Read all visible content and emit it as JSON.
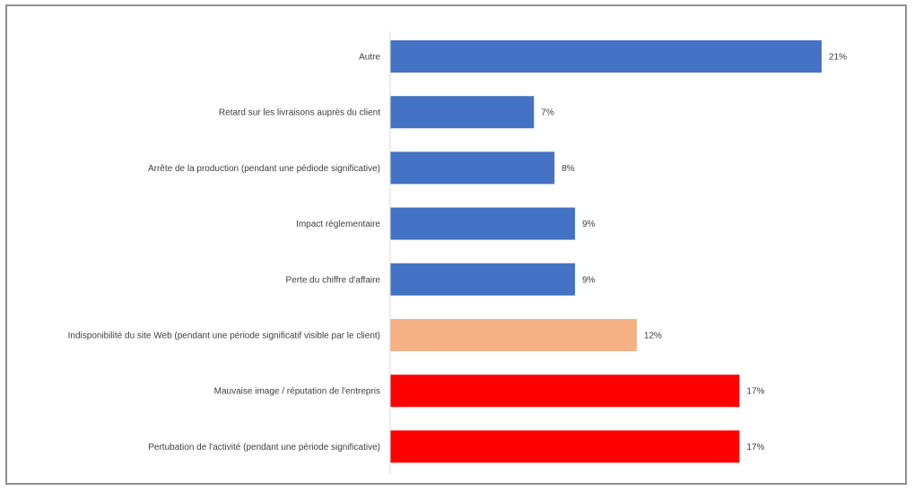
{
  "chart_data": {
    "type": "bar",
    "orientation": "horizontal",
    "categories": [
      "Autre",
      "Retard sur les livraisons auprès du client",
      "Arrête de la production (pendant une pédiode significative)",
      "Impact réglementaire",
      "Perte du chiffre d'affaire",
      "Indisponibilité du site Web (pendant une période significatif visible par le client)",
      "Mauvaise image / réputation de l'entrepris",
      "Pertubation de l'activité (pendant une période significative)"
    ],
    "values": [
      21,
      7,
      8,
      9,
      9,
      12,
      17,
      17
    ],
    "value_labels": [
      "21%",
      "7%",
      "8%",
      "9%",
      "9%",
      "12%",
      "17%",
      "17%"
    ],
    "bar_colors": [
      "#4472C4",
      "#4472C4",
      "#4472C4",
      "#4472C4",
      "#4472C4",
      "#F4B183",
      "#FF0000",
      "#FF0000"
    ],
    "unit": "%",
    "xlim": [
      0,
      21
    ],
    "grid": false,
    "title": "",
    "xlabel": "",
    "ylabel": ""
  }
}
